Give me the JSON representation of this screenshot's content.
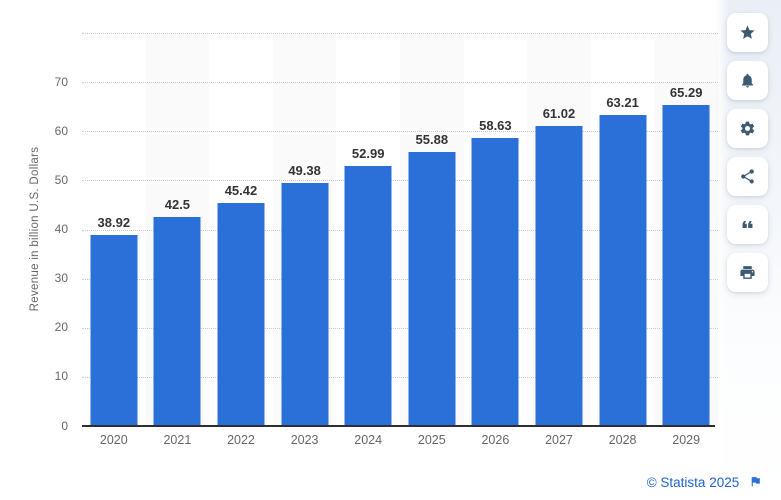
{
  "chart_data": {
    "type": "bar",
    "categories": [
      "2020",
      "2021",
      "2022",
      "2023",
      "2024",
      "2025",
      "2026",
      "2027",
      "2028",
      "2029"
    ],
    "values": [
      38.92,
      42.5,
      45.42,
      49.38,
      52.99,
      55.88,
      58.63,
      61.02,
      63.21,
      65.29
    ],
    "value_labels": [
      "38.92",
      "42.5",
      "45.42",
      "49.38",
      "52.99",
      "55.88",
      "58.63",
      "61.02",
      "63.21",
      "65.29"
    ],
    "xlabel": "",
    "ylabel": "Revenue in billion U.S. Dollars",
    "ylim": [
      0,
      80
    ],
    "y_ticks": [
      0,
      10,
      20,
      30,
      40,
      50,
      60,
      70
    ],
    "y_gridlines": [
      10,
      20,
      30,
      40,
      50,
      60,
      70,
      80
    ],
    "grid": "horizontal-dotted",
    "legend": "none",
    "bar_color": "#2b6fd9",
    "column_stripe_color": "#fafafa",
    "value_label_color": "#333333",
    "axis_text_color": "#666666"
  },
  "sidebar": {
    "icon_color": "#3d5a73",
    "buttons": [
      {
        "name": "favorite",
        "icon": "star-icon"
      },
      {
        "name": "notifications",
        "icon": "bell-icon"
      },
      {
        "name": "settings",
        "icon": "gear-icon"
      },
      {
        "name": "share",
        "icon": "share-icon"
      },
      {
        "name": "cite",
        "icon": "quote-icon"
      },
      {
        "name": "print",
        "icon": "printer-icon"
      }
    ]
  },
  "footer": {
    "credit": "© Statista 2025",
    "credit_color": "#1f62d0",
    "flag_color": "#2e6fd8",
    "flag_icon": "flag-icon"
  }
}
